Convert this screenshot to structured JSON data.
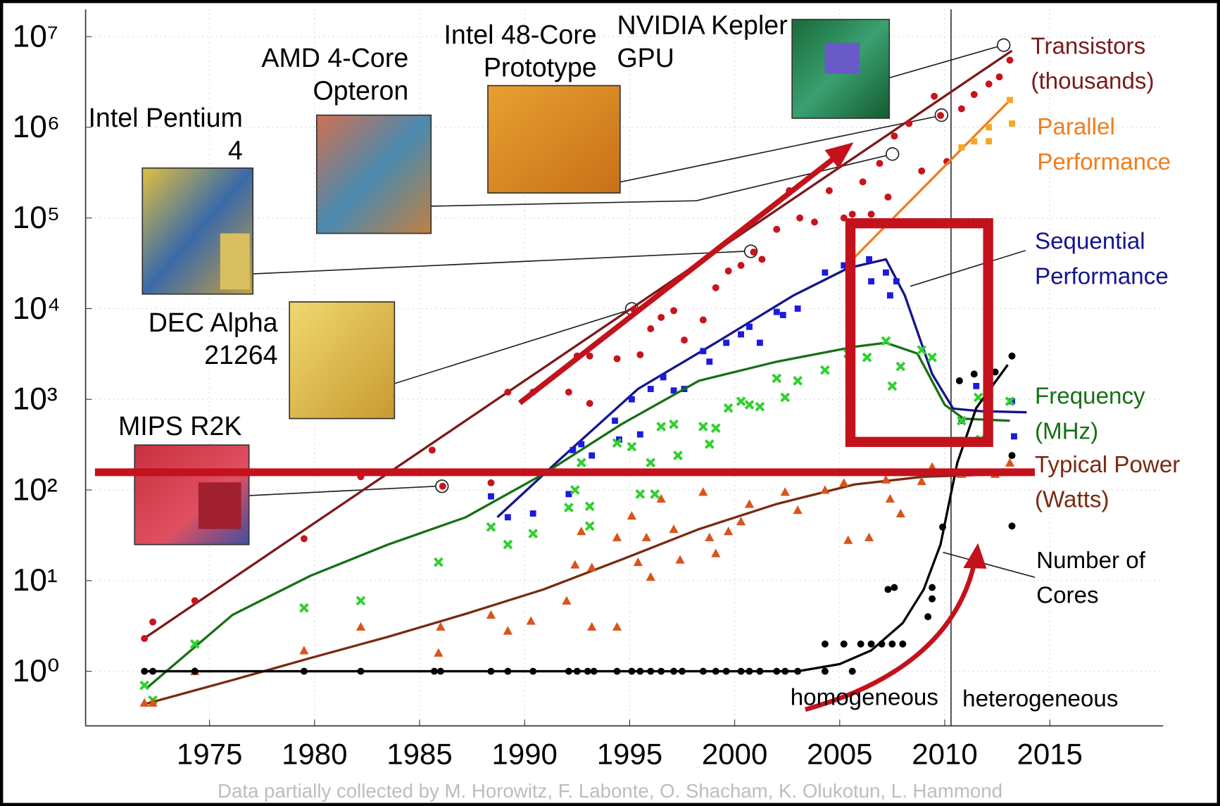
{
  "chart_data": {
    "type": "scatter",
    "log_y": true,
    "grid": true,
    "xlim": [
      1969.1,
      2020.4
    ],
    "xticks": [
      1975,
      1980,
      1985,
      1990,
      1995,
      2000,
      2005,
      2010,
      2015
    ],
    "ylim": [
      0.25,
      20000000
    ],
    "yticks": [
      {
        "value": 1,
        "label": "10⁰"
      },
      {
        "value": 10,
        "label": "10¹"
      },
      {
        "value": 100,
        "label": "10²"
      },
      {
        "value": 1000,
        "label": "10³"
      },
      {
        "value": 10000,
        "label": "10⁴"
      },
      {
        "value": 100000,
        "label": "10⁵"
      },
      {
        "value": 1000000,
        "label": "10⁶"
      },
      {
        "value": 10000000,
        "label": "10⁷"
      }
    ],
    "divider_x": 2010.3,
    "regions": [
      "homogeneous",
      "heterogeneous"
    ],
    "source": "Data partially collected by M. Horowitz, F. Labonte, O. Shacham, K. Olukotun, L. Hammond",
    "chips": [
      "Intel 48-Core Prototype",
      "NVIDIA Kepler GPU",
      "AMD 4-Core Opteron",
      "Intel Pentium 4",
      "DEC Alpha 21264",
      "MIPS R2K"
    ],
    "series": [
      {
        "name": "Transistors (thousands)",
        "marker": "dot",
        "color": "#c8141c",
        "trend_color": "#7a1a1a",
        "x": [
          1971.9,
          1972.3,
          1974.3,
          1979.5,
          1982.2,
          1985.6,
          1986.1,
          1988.4,
          1989.2,
          1990.4,
          1992.1,
          1992.5,
          1993.1,
          1993.1,
          1994.4,
          1995.2,
          1995.5,
          1996.0,
          1996.5,
          1997.1,
          1997.6,
          1998.5,
          1999.1,
          1999.7,
          2000.3,
          2000.9,
          2001.3,
          2002.0,
          2002.6,
          2003.1,
          2003.8,
          2004.5,
          2005.2,
          2005.6,
          2006.1,
          2006.5,
          2006.9,
          2007.3,
          2007.6,
          2008.3,
          2008.9,
          2009.5,
          2009.8,
          2010.1,
          2010.8,
          2011.4,
          2012.1,
          2012.6,
          2013.1
        ],
        "values": [
          2.3,
          3.5,
          6,
          29,
          140,
          275,
          110,
          120,
          1200,
          1200,
          1200,
          3000,
          3000,
          900,
          2800,
          9800,
          3100,
          6000,
          8000,
          9500,
          4500,
          7500,
          17000,
          26000,
          30000,
          42000,
          35000,
          75000,
          200000,
          100000,
          90000,
          200000,
          100000,
          110000,
          250000,
          110000,
          400000,
          170000,
          800000,
          1100000,
          330000,
          2200000,
          1350000,
          420000,
          1600000,
          2300000,
          3000000,
          3600000,
          5500000
        ],
        "trend_x": [
          1972,
          2013.2
        ],
        "trend_values": [
          2.4,
          7000000
        ]
      },
      {
        "name": "Parallel Performance",
        "marker": "square",
        "color": "#f5a623",
        "trend_color": "#f07d1e",
        "x": [
          2010.8,
          2011.4,
          2012.1,
          2012.1,
          2013.1,
          2013.2
        ],
        "values": [
          600000,
          700000,
          1000000,
          700000,
          2000000,
          1100000
        ],
        "trend_x": [
          2005.2,
          2013.2
        ],
        "trend_values": [
          28000,
          2100000
        ]
      },
      {
        "name": "Sequential Performance",
        "marker": "square",
        "color": "#1a1ae0",
        "trend_color": "#14148c",
        "x": [
          1988.4,
          1989.2,
          1990.4,
          1992.1,
          1992.3,
          1992.7,
          1993.2,
          1994.3,
          1994.5,
          1995.1,
          1995.5,
          1996.0,
          1996.6,
          1997.1,
          1997.6,
          1998.5,
          1998.8,
          1999.6,
          2000.3,
          2000.7,
          2001.2,
          2002.0,
          2002.3,
          2003.0,
          2004.3,
          2005.2,
          2006.4,
          2006.5,
          2007.2,
          2007.4,
          2007.7,
          2010.8,
          2011.5,
          2013.2,
          2013.3
        ],
        "values": [
          85,
          50,
          55,
          90,
          275,
          320,
          240,
          580,
          360,
          1000,
          410,
          1300,
          1750,
          1250,
          1300,
          3400,
          2600,
          4200,
          5200,
          6300,
          4200,
          9200,
          8500,
          10000,
          25000,
          30000,
          35000,
          20000,
          25000,
          14000,
          20000,
          580,
          1400,
          950,
          390
        ],
        "trend_x": [
          1988.7,
          1991.7,
          1995.4,
          1999.1,
          2002.8,
          2005.4,
          2007.2,
          2008.1,
          2009.4,
          2010.4,
          2011.7,
          2013.9
        ],
        "trend_values": [
          50,
          220,
          1300,
          4200,
          14000,
          28000,
          35000,
          14000,
          1900,
          790,
          740,
          720
        ]
      },
      {
        "name": "Frequency (MHz)",
        "marker": "cross",
        "color": "#2ed12e",
        "trend_color": "#167016",
        "x": [
          1971.9,
          1972.3,
          1974.3,
          1979.5,
          1982.2,
          1985.9,
          1988.4,
          1989.2,
          1990.4,
          1992.1,
          1992.4,
          1992.7,
          1993.1,
          1993.1,
          1994.4,
          1995.1,
          1995.5,
          1996.0,
          1996.2,
          1996.5,
          1997.1,
          1997.3,
          1998.5,
          1998.8,
          1999.1,
          1999.7,
          2000.3,
          2000.7,
          2001.2,
          2002.0,
          2002.4,
          2003.0,
          2004.3,
          2005.4,
          2006.3,
          2007.2,
          2007.5,
          2007.9,
          2008.9,
          2009.4,
          2010.8,
          2011.6,
          2011.7,
          2013.1
        ],
        "values": [
          0.7,
          0.48,
          2,
          5,
          6,
          16,
          39,
          25,
          33,
          64,
          100,
          200,
          66,
          40,
          330,
          300,
          90,
          200,
          90,
          500,
          530,
          240,
          500,
          320,
          480,
          800,
          950,
          870,
          830,
          1700,
          1050,
          1600,
          2100,
          3200,
          2900,
          4400,
          1400,
          2300,
          3500,
          2900,
          580,
          1050,
          360,
          950
        ],
        "trend_x": [
          1972,
          1976.1,
          1979.8,
          1983.5,
          1987.2,
          1990.9,
          1994.6,
          1998.3,
          2002,
          2005.7,
          2007.2,
          2008.7,
          2010,
          2010.9,
          2013.1
        ],
        "trend_values": [
          0.65,
          4.2,
          11.3,
          25,
          50,
          150,
          530,
          1600,
          2600,
          3800,
          4200,
          3200,
          870,
          610,
          580
        ]
      },
      {
        "name": "Typical Power (Watts)",
        "marker": "triangle",
        "color": "#d9541a",
        "trend_color": "#7a2a12",
        "x": [
          1971.9,
          1972.3,
          1974.3,
          1979.5,
          1982.2,
          1985.9,
          1986.0,
          1988.4,
          1989.2,
          1990.3,
          1992.0,
          1992.4,
          1992.7,
          1993.2,
          1993.2,
          1994.4,
          1994.4,
          1995.1,
          1995.4,
          1995.8,
          1996.0,
          1996.5,
          1997.1,
          1997.4,
          1998.5,
          1998.8,
          1999.1,
          1999.7,
          2000.3,
          2000.7,
          2002.4,
          2003.0,
          2004.3,
          2005.2,
          2005.4,
          2006.4,
          2007.2,
          2007.4,
          2007.9,
          2008.9,
          2009.4,
          2010.8,
          2012.4,
          2013.1
        ],
        "values": [
          0.45,
          0.45,
          1,
          1.7,
          3.1,
          1.6,
          3.1,
          4.2,
          2.8,
          3.6,
          6,
          15,
          35,
          14,
          3.1,
          3.1,
          30,
          52,
          16,
          30,
          11,
          80,
          37,
          17,
          95,
          30,
          20,
          35,
          45,
          70,
          95,
          60,
          100,
          120,
          28,
          30,
          130,
          80,
          55,
          125,
          180,
          150,
          150,
          200
        ],
        "trend_x": [
          1972,
          1976.1,
          1979.8,
          1983.5,
          1987.2,
          1990.9,
          1994.6,
          1998.3,
          2002,
          2005.7,
          2009,
          2013.1
        ],
        "trend_values": [
          0.44,
          0.8,
          1.4,
          2.4,
          4.3,
          8,
          17,
          37,
          70,
          115,
          140,
          150
        ]
      },
      {
        "name": "Number of Cores",
        "marker": "dot",
        "color": "#000000",
        "trend_color": "#000000",
        "x": [
          1971.9,
          1972.3,
          1974.3,
          1979.5,
          1982.2,
          1985.7,
          1986.0,
          1988.4,
          1989.2,
          1990.4,
          1992.1,
          1992.5,
          1993.0,
          1993.3,
          1994.4,
          1995.1,
          1995.5,
          1996.0,
          1996.5,
          1997.1,
          1997.5,
          1998.5,
          1999.1,
          1999.6,
          2000.3,
          2000.7,
          2001.2,
          2002.0,
          2002.4,
          2003.0,
          2004.3,
          2005.6,
          2004.3,
          2005.2,
          2006.0,
          2006.5,
          2007.0,
          2007.5,
          2008.0,
          2009.2,
          2007.6,
          2007.3,
          2009.4,
          2009.4,
          2009.9,
          2010.7,
          2011.4,
          2012.4,
          2013.2,
          2013.2,
          2013.2
        ],
        "values": [
          1,
          1,
          1,
          1,
          1,
          1,
          1,
          1,
          1,
          1,
          1,
          1,
          1,
          1,
          1,
          1,
          1,
          1,
          1,
          1,
          1,
          1,
          1,
          1,
          1,
          1,
          1,
          1,
          1,
          1,
          1,
          1,
          2,
          2,
          2,
          2,
          2,
          2,
          2,
          4,
          8.4,
          8,
          6.3,
          8.4,
          39,
          1600,
          1900,
          2000,
          3000,
          240,
          40
        ],
        "trend_x": [
          1972,
          2003,
          2005,
          2006.5,
          2008,
          2009,
          2009.8,
          2010.6,
          2011.5,
          2013
        ],
        "trend_values": [
          1,
          1,
          1.2,
          1.7,
          3.4,
          8,
          25,
          200,
          800,
          2400
        ]
      }
    ]
  }
}
